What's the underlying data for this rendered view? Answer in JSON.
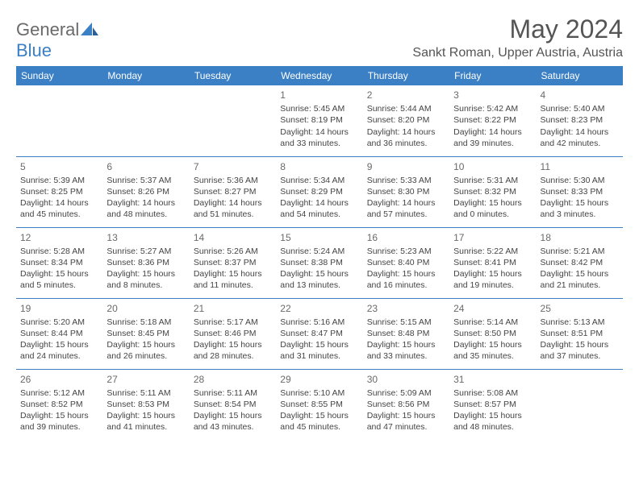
{
  "brand": {
    "part1": "General",
    "part2": "Blue"
  },
  "title": "May 2024",
  "location": "Sankt Roman, Upper Austria, Austria",
  "colors": {
    "header_bg": "#3b7fc4",
    "header_text": "#ffffff",
    "border": "#3b7fc4",
    "text": "#444444",
    "title": "#555555",
    "daynum": "#6a6a6a"
  },
  "weekdays": [
    "Sunday",
    "Monday",
    "Tuesday",
    "Wednesday",
    "Thursday",
    "Friday",
    "Saturday"
  ],
  "weeks": [
    [
      null,
      null,
      null,
      {
        "n": "1",
        "sr": "5:45 AM",
        "ss": "8:19 PM",
        "dl": "14 hours and 33 minutes."
      },
      {
        "n": "2",
        "sr": "5:44 AM",
        "ss": "8:20 PM",
        "dl": "14 hours and 36 minutes."
      },
      {
        "n": "3",
        "sr": "5:42 AM",
        "ss": "8:22 PM",
        "dl": "14 hours and 39 minutes."
      },
      {
        "n": "4",
        "sr": "5:40 AM",
        "ss": "8:23 PM",
        "dl": "14 hours and 42 minutes."
      }
    ],
    [
      {
        "n": "5",
        "sr": "5:39 AM",
        "ss": "8:25 PM",
        "dl": "14 hours and 45 minutes."
      },
      {
        "n": "6",
        "sr": "5:37 AM",
        "ss": "8:26 PM",
        "dl": "14 hours and 48 minutes."
      },
      {
        "n": "7",
        "sr": "5:36 AM",
        "ss": "8:27 PM",
        "dl": "14 hours and 51 minutes."
      },
      {
        "n": "8",
        "sr": "5:34 AM",
        "ss": "8:29 PM",
        "dl": "14 hours and 54 minutes."
      },
      {
        "n": "9",
        "sr": "5:33 AM",
        "ss": "8:30 PM",
        "dl": "14 hours and 57 minutes."
      },
      {
        "n": "10",
        "sr": "5:31 AM",
        "ss": "8:32 PM",
        "dl": "15 hours and 0 minutes."
      },
      {
        "n": "11",
        "sr": "5:30 AM",
        "ss": "8:33 PM",
        "dl": "15 hours and 3 minutes."
      }
    ],
    [
      {
        "n": "12",
        "sr": "5:28 AM",
        "ss": "8:34 PM",
        "dl": "15 hours and 5 minutes."
      },
      {
        "n": "13",
        "sr": "5:27 AM",
        "ss": "8:36 PM",
        "dl": "15 hours and 8 minutes."
      },
      {
        "n": "14",
        "sr": "5:26 AM",
        "ss": "8:37 PM",
        "dl": "15 hours and 11 minutes."
      },
      {
        "n": "15",
        "sr": "5:24 AM",
        "ss": "8:38 PM",
        "dl": "15 hours and 13 minutes."
      },
      {
        "n": "16",
        "sr": "5:23 AM",
        "ss": "8:40 PM",
        "dl": "15 hours and 16 minutes."
      },
      {
        "n": "17",
        "sr": "5:22 AM",
        "ss": "8:41 PM",
        "dl": "15 hours and 19 minutes."
      },
      {
        "n": "18",
        "sr": "5:21 AM",
        "ss": "8:42 PM",
        "dl": "15 hours and 21 minutes."
      }
    ],
    [
      {
        "n": "19",
        "sr": "5:20 AM",
        "ss": "8:44 PM",
        "dl": "15 hours and 24 minutes."
      },
      {
        "n": "20",
        "sr": "5:18 AM",
        "ss": "8:45 PM",
        "dl": "15 hours and 26 minutes."
      },
      {
        "n": "21",
        "sr": "5:17 AM",
        "ss": "8:46 PM",
        "dl": "15 hours and 28 minutes."
      },
      {
        "n": "22",
        "sr": "5:16 AM",
        "ss": "8:47 PM",
        "dl": "15 hours and 31 minutes."
      },
      {
        "n": "23",
        "sr": "5:15 AM",
        "ss": "8:48 PM",
        "dl": "15 hours and 33 minutes."
      },
      {
        "n": "24",
        "sr": "5:14 AM",
        "ss": "8:50 PM",
        "dl": "15 hours and 35 minutes."
      },
      {
        "n": "25",
        "sr": "5:13 AM",
        "ss": "8:51 PM",
        "dl": "15 hours and 37 minutes."
      }
    ],
    [
      {
        "n": "26",
        "sr": "5:12 AM",
        "ss": "8:52 PM",
        "dl": "15 hours and 39 minutes."
      },
      {
        "n": "27",
        "sr": "5:11 AM",
        "ss": "8:53 PM",
        "dl": "15 hours and 41 minutes."
      },
      {
        "n": "28",
        "sr": "5:11 AM",
        "ss": "8:54 PM",
        "dl": "15 hours and 43 minutes."
      },
      {
        "n": "29",
        "sr": "5:10 AM",
        "ss": "8:55 PM",
        "dl": "15 hours and 45 minutes."
      },
      {
        "n": "30",
        "sr": "5:09 AM",
        "ss": "8:56 PM",
        "dl": "15 hours and 47 minutes."
      },
      {
        "n": "31",
        "sr": "5:08 AM",
        "ss": "8:57 PM",
        "dl": "15 hours and 48 minutes."
      },
      null
    ]
  ],
  "labels": {
    "sunrise": "Sunrise: ",
    "sunset": "Sunset: ",
    "daylight": "Daylight: "
  }
}
